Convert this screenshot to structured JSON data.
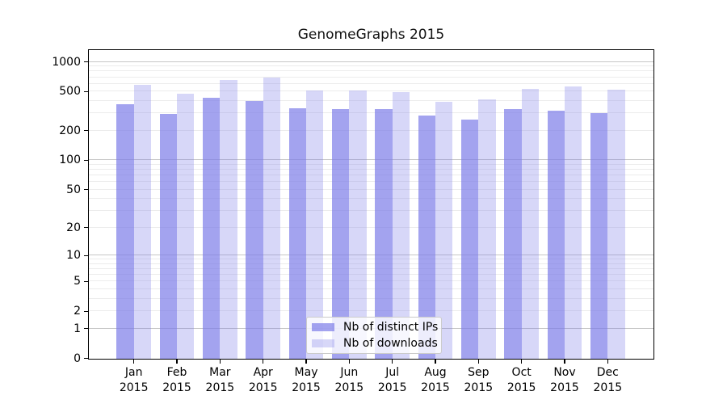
{
  "chart_data": {
    "type": "bar",
    "title": "GenomeGraphs 2015",
    "year_label": "2015",
    "categories": [
      "Jan",
      "Feb",
      "Mar",
      "Apr",
      "May",
      "Jun",
      "Jul",
      "Aug",
      "Sep",
      "Oct",
      "Nov",
      "Dec"
    ],
    "series": [
      {
        "name": "Nb of distinct IPs",
        "css_color": "rgba(124,124,232,0.7)",
        "hex_on_white": "#a3a3ef",
        "values": [
          376,
          299,
          437,
          403,
          340,
          335,
          330,
          284,
          260,
          330,
          320,
          304
        ]
      },
      {
        "name": "Nb of downloads",
        "css_color": "rgba(124,124,232,0.3)",
        "hex_on_white": "#d8d8f8",
        "values": [
          589,
          475,
          660,
          695,
          512,
          512,
          490,
          398,
          416,
          535,
          565,
          521
        ]
      }
    ],
    "xlabel": "",
    "ylabel": "",
    "yscale": "log1p",
    "yticks": [
      0,
      1,
      2,
      5,
      10,
      20,
      50,
      100,
      200,
      500,
      1000
    ],
    "ylim": [
      0,
      1300
    ],
    "grid": true,
    "grid_minor_color": "#ececec",
    "grid_major_color": "#c6c6c6",
    "axis_color": "#000000",
    "legend_position": "lower-center"
  }
}
